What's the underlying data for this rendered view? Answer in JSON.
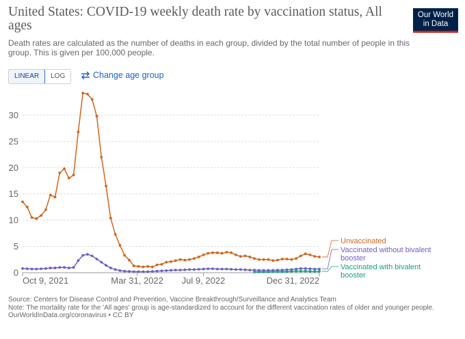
{
  "header": {
    "title": "United States: COVID-19 weekly death rate by vaccination status, All ages",
    "subtitle": "Death rates are calculated as the number of deaths in each group, divided by the total number of people in this group. This is given per 100,000 people.",
    "logo": [
      "Our World",
      "in Data"
    ]
  },
  "controls": {
    "scale_buttons": [
      "LINEAR",
      "LOG"
    ],
    "age_button": "Change age group"
  },
  "chart_data": {
    "type": "line",
    "x": [
      "2021-10-09",
      "2021-10-16",
      "2021-10-23",
      "2021-10-30",
      "2021-11-06",
      "2021-11-13",
      "2021-11-20",
      "2021-11-27",
      "2021-12-04",
      "2021-12-11",
      "2021-12-18",
      "2021-12-25",
      "2022-01-01",
      "2022-01-08",
      "2022-01-15",
      "2022-01-22",
      "2022-01-29",
      "2022-02-05",
      "2022-02-12",
      "2022-02-19",
      "2022-02-26",
      "2022-03-05",
      "2022-03-12",
      "2022-03-19",
      "2022-03-26",
      "2022-04-02",
      "2022-04-09",
      "2022-04-16",
      "2022-04-23",
      "2022-04-30",
      "2022-05-07",
      "2022-05-14",
      "2022-05-21",
      "2022-05-28",
      "2022-06-04",
      "2022-06-11",
      "2022-06-18",
      "2022-06-25",
      "2022-07-02",
      "2022-07-09",
      "2022-07-16",
      "2022-07-23",
      "2022-07-30",
      "2022-08-06",
      "2022-08-13",
      "2022-08-20",
      "2022-08-27",
      "2022-09-03",
      "2022-09-10",
      "2022-09-17",
      "2022-09-24",
      "2022-10-01",
      "2022-10-08",
      "2022-10-15",
      "2022-10-22",
      "2022-10-29",
      "2022-11-05",
      "2022-11-12",
      "2022-11-19",
      "2022-11-26",
      "2022-12-03",
      "2022-12-10",
      "2022-12-17",
      "2022-12-24",
      "2022-12-31"
    ],
    "series": [
      {
        "name": "Unvaccinated",
        "color": "#d2641c",
        "values": [
          13.5,
          12.5,
          10.5,
          10.3,
          10.9,
          12,
          14.8,
          14.4,
          19,
          19.8,
          18,
          18.6,
          26.8,
          34.2,
          34,
          33,
          29.8,
          22,
          16.5,
          10.4,
          7.3,
          5.2,
          3.3,
          2.4,
          1.3,
          1.2,
          1.1,
          1.2,
          1.1,
          1.5,
          1.6,
          2.0,
          2.1,
          2.3,
          2.5,
          2.4,
          2.5,
          2.7,
          3.0,
          3.4,
          3.7,
          3.8,
          3.8,
          3.7,
          3.9,
          3.8,
          3.4,
          3.1,
          3.2,
          3.0,
          2.7,
          2.5,
          2.5,
          2.5,
          2.3,
          2.4,
          2.6,
          2.6,
          2.5,
          2.7,
          3.2,
          3.6,
          3.4,
          3.1,
          3.0
        ]
      },
      {
        "name": "Vaccinated without bivalent booster",
        "color": "#6b5fc4",
        "values": [
          0.8,
          0.75,
          0.7,
          0.7,
          0.75,
          0.8,
          0.9,
          0.9,
          1.0,
          1.0,
          0.9,
          1.0,
          2.3,
          3.3,
          3.5,
          3.2,
          2.6,
          2.0,
          1.4,
          0.9,
          0.6,
          0.4,
          0.3,
          0.25,
          0.2,
          0.2,
          0.2,
          0.2,
          0.25,
          0.3,
          0.35,
          0.4,
          0.45,
          0.5,
          0.5,
          0.55,
          0.6,
          0.6,
          0.65,
          0.7,
          0.75,
          0.75,
          0.7,
          0.7,
          0.7,
          0.65,
          0.6,
          0.6,
          0.55,
          0.5,
          0.5,
          0.45,
          0.45,
          0.45,
          0.45,
          0.5,
          0.5,
          0.55,
          0.6,
          0.7,
          0.8,
          0.8,
          0.75,
          0.7,
          0.7
        ]
      },
      {
        "name": "Vaccinated with bivalent booster",
        "color": "#16a083",
        "values": [
          null,
          null,
          null,
          null,
          null,
          null,
          null,
          null,
          null,
          null,
          null,
          null,
          null,
          null,
          null,
          null,
          null,
          null,
          null,
          null,
          null,
          null,
          null,
          null,
          null,
          null,
          null,
          null,
          null,
          null,
          null,
          null,
          null,
          null,
          null,
          null,
          null,
          null,
          null,
          null,
          null,
          null,
          null,
          null,
          null,
          null,
          null,
          null,
          null,
          null,
          0.15,
          0.15,
          0.15,
          0.15,
          0.2,
          0.2,
          0.2,
          0.2,
          0.25,
          0.3,
          0.3,
          0.3,
          0.25,
          0.25,
          0.25
        ]
      }
    ],
    "xlim": [
      "2021-10-09",
      "2022-12-31"
    ],
    "xticks": [
      {
        "value": "2021-10-09",
        "label": "Oct 9, 2021"
      },
      {
        "value": "2022-03-31",
        "label": "Mar 31, 2022"
      },
      {
        "value": "2022-07-09",
        "label": "Jul 9, 2022"
      },
      {
        "value": "2022-12-31",
        "label": "Dec 31, 2022"
      }
    ],
    "ylim": [
      0,
      35
    ],
    "yticks": [
      0,
      5,
      10,
      15,
      20,
      25,
      30
    ],
    "grid": true
  },
  "footer": {
    "source": "Source: Centers for Disease Control and Prevention, Vaccine Breakthrough/Surveillance and Analytics Team",
    "note": "Note: The mortality rate for the 'All ages' group is age-standardized to account for the different vaccination rates of older and younger people.",
    "url": "OurWorldInData.org/coronavirus • CC BY"
  }
}
